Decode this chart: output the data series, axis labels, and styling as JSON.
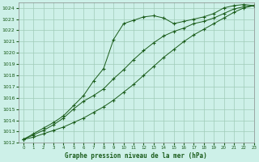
{
  "title": "Graphe pression niveau de la mer (hPa)",
  "background_color": "#cdf0e8",
  "plot_bg_color": "#cdf0e8",
  "grid_color": "#a0ccb8",
  "line_color": "#1a5c1a",
  "xlim": [
    -0.5,
    23
  ],
  "ylim": [
    1012,
    1024.5
  ],
  "xticks": [
    0,
    1,
    2,
    3,
    4,
    5,
    6,
    7,
    8,
    9,
    10,
    11,
    12,
    13,
    14,
    15,
    16,
    17,
    18,
    19,
    20,
    21,
    22,
    23
  ],
  "yticks": [
    1012,
    1013,
    1014,
    1015,
    1016,
    1017,
    1018,
    1019,
    1020,
    1021,
    1022,
    1023,
    1024
  ],
  "series": [
    {
      "x": [
        0,
        1,
        2,
        3,
        4,
        5,
        6,
        7,
        8,
        9,
        10,
        11,
        12,
        13,
        14,
        15,
        16,
        17,
        18,
        19,
        20,
        21,
        22,
        23
      ],
      "y": [
        1012.3,
        1012.8,
        1013.3,
        1013.8,
        1014.4,
        1015.3,
        1016.2,
        1017.5,
        1018.6,
        1021.2,
        1022.6,
        1022.9,
        1023.2,
        1023.3,
        1023.1,
        1022.6,
        1022.8,
        1023.0,
        1023.2,
        1023.5,
        1024.0,
        1024.2,
        1024.3,
        1024.2
      ]
    },
    {
      "x": [
        0,
        1,
        2,
        3,
        4,
        5,
        6,
        7,
        8,
        9,
        10,
        11,
        12,
        13,
        14,
        15,
        16,
        17,
        18,
        19,
        20,
        21,
        22,
        23
      ],
      "y": [
        1012.3,
        1012.7,
        1013.1,
        1013.6,
        1014.2,
        1015.0,
        1015.7,
        1016.2,
        1016.8,
        1017.7,
        1018.5,
        1019.4,
        1020.2,
        1020.9,
        1021.5,
        1021.9,
        1022.2,
        1022.6,
        1022.8,
        1023.1,
        1023.5,
        1023.9,
        1024.1,
        1024.2
      ]
    },
    {
      "x": [
        0,
        1,
        2,
        3,
        4,
        5,
        6,
        7,
        8,
        9,
        10,
        11,
        12,
        13,
        14,
        15,
        16,
        17,
        18,
        19,
        20,
        21,
        22,
        23
      ],
      "y": [
        1012.3,
        1012.5,
        1012.8,
        1013.1,
        1013.4,
        1013.8,
        1014.2,
        1014.7,
        1015.2,
        1015.8,
        1016.5,
        1017.2,
        1018.0,
        1018.8,
        1019.6,
        1020.3,
        1021.0,
        1021.6,
        1022.1,
        1022.6,
        1023.1,
        1023.6,
        1024.0,
        1024.2
      ]
    }
  ]
}
